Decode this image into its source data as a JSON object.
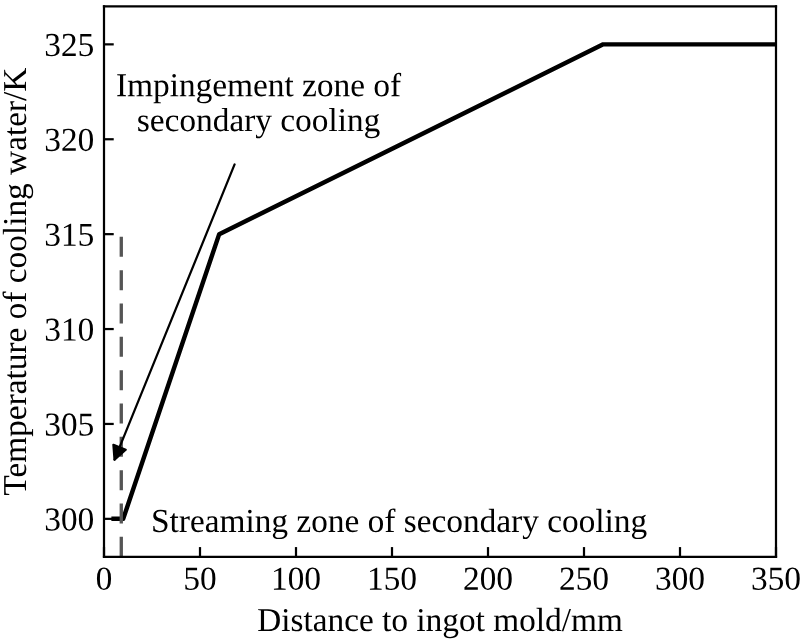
{
  "chart_data": {
    "type": "line",
    "xlabel": "Distance to ingot mold/mm",
    "ylabel": "Temperature of cooling water/K",
    "series": [
      {
        "x": [
          5,
          10,
          60,
          260,
          350
        ],
        "values": [
          300,
          300,
          315,
          325,
          325
        ],
        "color": "#000000",
        "line_style": "solid"
      },
      {
        "x": [
          9,
          9
        ],
        "values": [
          298,
          315
        ],
        "color": "#555555",
        "line_style": "dashed"
      }
    ],
    "annotations": [
      {
        "text": "Impingement zone of\nsecondary cooling",
        "x": 5,
        "y": 303
      },
      "Streaming zone of secondary cooling"
    ],
    "xlim": [
      0,
      350
    ],
    "xticks": [
      0,
      50,
      100,
      150,
      200,
      250,
      300,
      350
    ],
    "ylim": [
      298,
      327
    ],
    "yticks": [
      300,
      305,
      310,
      315,
      320,
      325
    ],
    "grid": false,
    "legend": false,
    "marker": "none"
  }
}
